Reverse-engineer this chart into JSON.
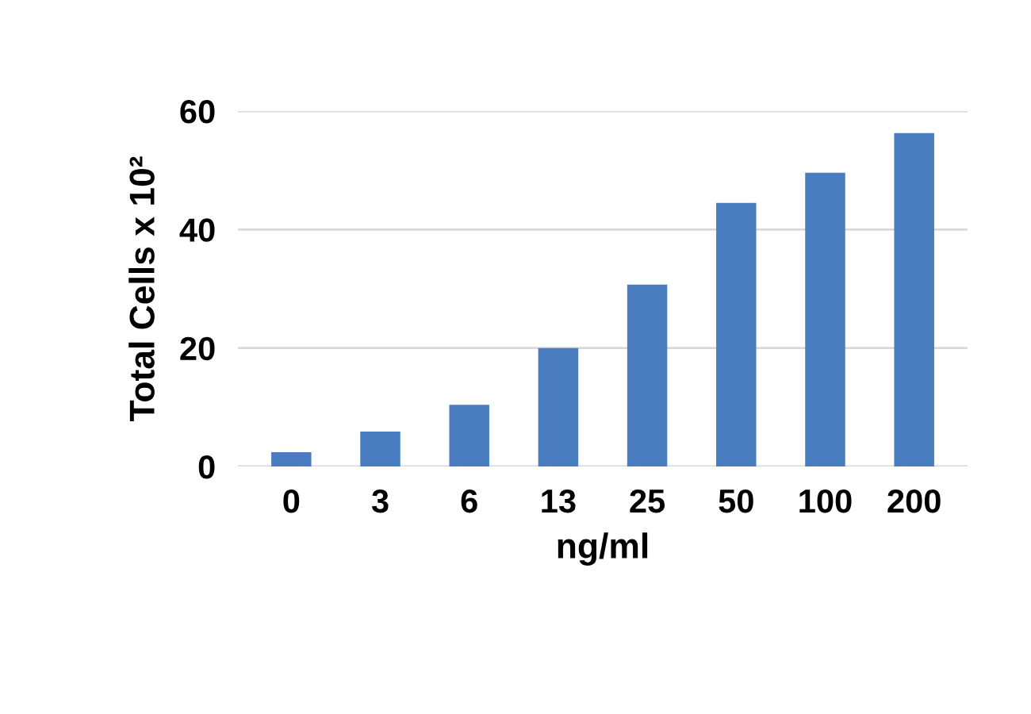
{
  "chart_data": {
    "type": "bar",
    "xlabel": "ng/ml",
    "ylabel": "Total Cells x 10²",
    "categories": [
      "0",
      "3",
      "6",
      "13",
      "25",
      "50",
      "100",
      "200"
    ],
    "values": [
      2.4,
      5.9,
      10.4,
      20,
      30.7,
      44.5,
      49.6,
      56.3
    ],
    "color": "#4a7cc0",
    "ylim": [
      0,
      60
    ],
    "yticks": [
      0,
      20,
      40,
      60
    ],
    "grid": "y"
  }
}
